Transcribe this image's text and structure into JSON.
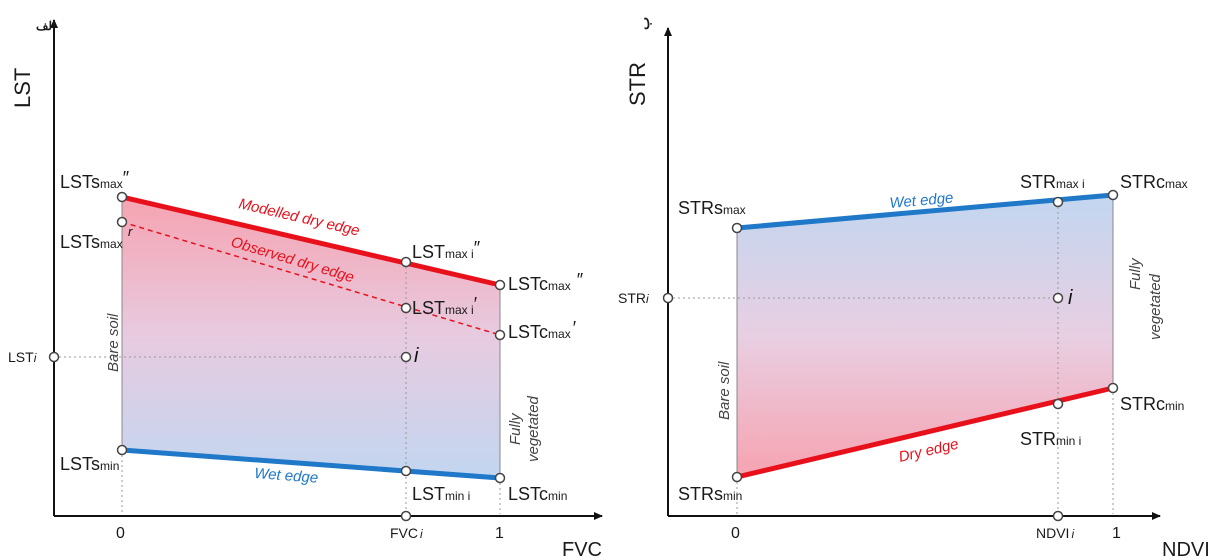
{
  "colors": {
    "dry_edge": "#e8101b",
    "wet_edge": "#1f78c8",
    "dry_fill": "#f6a7b4",
    "wet_fill": "#c2d6f0",
    "axis": "#111111",
    "guide": "#9a9a9a"
  },
  "left_panel": {
    "tag": "الف",
    "y_axis_label": "LST",
    "x_axis_label": "FVC",
    "x_ticks": {
      "zero": "0",
      "fvc_i": "FVC",
      "fvc_i_sub": "i",
      "one": "1"
    },
    "y_tick_lst_i": {
      "main": "LST",
      "sub": "i"
    },
    "bare_soil": "Bare soil",
    "fully_vegetated_1": "Fully",
    "fully_vegetated_2": "vegetated",
    "modelled_dry_edge": "Modelled  dry edge",
    "observed_dry_edge": "Observed dry edge",
    "wet_edge": "Wet edge",
    "point_i": "i",
    "point_r": "r",
    "labels": {
      "lst_smax_mod": {
        "main": "LSTs",
        "sub": "max",
        "sup": "″"
      },
      "lst_smax_obs": {
        "main": "LSTs",
        "sub": "max",
        "sup": ""
      },
      "lst_smin": {
        "main": "LSTs",
        "sub": "min",
        "sup": ""
      },
      "lst_max_mod": {
        "main": "LST",
        "sub": "max i",
        "sup": "″"
      },
      "lst_max_obs": {
        "main": "LST",
        "sub": "max i",
        "sup": "′"
      },
      "lst_min": {
        "main": "LST",
        "sub": "min i",
        "sup": ""
      },
      "lst_cmax_mod": {
        "main": "LSTc",
        "sub": "max",
        "sup": "″"
      },
      "lst_cmax_obs": {
        "main": "LSTc",
        "sub": "max",
        "sup": "′"
      },
      "lst_cmin": {
        "main": "LSTc",
        "sub": "min",
        "sup": ""
      }
    }
  },
  "right_panel": {
    "tag": "ب",
    "y_axis_label": "STR",
    "x_axis_label": "NDVI",
    "x_ticks": {
      "zero": "0",
      "ndvi_i": "NDVI",
      "ndvi_i_sub": "i",
      "one": "1"
    },
    "y_tick_str_i": {
      "main": "STR",
      "sub": "i"
    },
    "bare_soil": "Bare soil",
    "fully_vegetated_1": "Fully",
    "fully_vegetated_2": "vegetated",
    "wet_edge": "Wet edge",
    "dry_edge": "Dry edge",
    "point_i": "i",
    "labels": {
      "str_smax": {
        "main": "STRs",
        "sub": "max"
      },
      "str_smin": {
        "main": "STRs",
        "sub": "min"
      },
      "str_max": {
        "main": "STR",
        "sub": "max i"
      },
      "str_min": {
        "main": "STR",
        "sub": "min i"
      },
      "str_cmax": {
        "main": "STRc",
        "sub": "max"
      },
      "str_cmin": {
        "main": "STRc",
        "sub": "min"
      }
    }
  }
}
